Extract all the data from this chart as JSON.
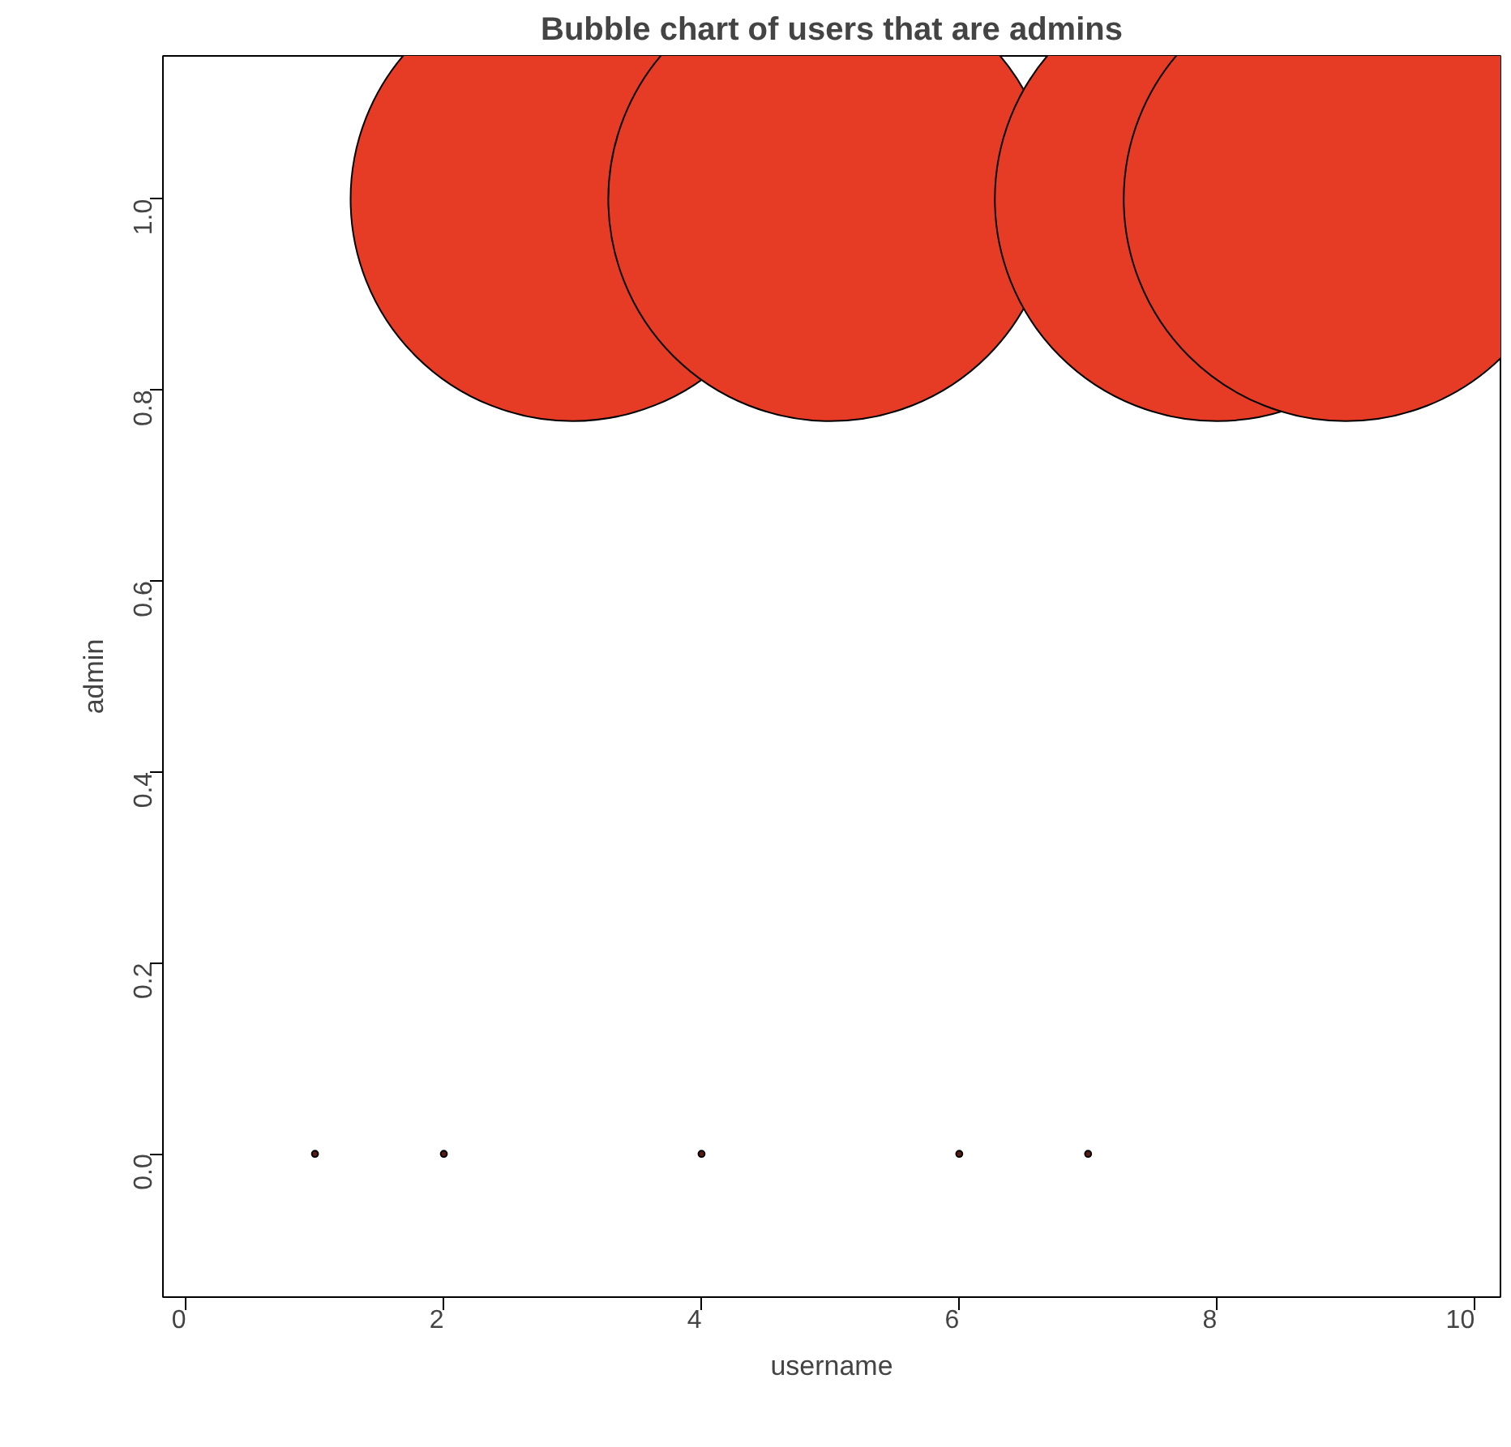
{
  "chart_data": {
    "type": "bubble",
    "title": "Bubble chart of users that are admins",
    "xlabel": "username",
    "ylabel": "admin",
    "x": [
      1,
      2,
      3,
      4,
      5,
      6,
      7,
      8,
      9
    ],
    "values": [
      0,
      0,
      1,
      0,
      1,
      0,
      0,
      1,
      1
    ],
    "sizes": [
      0.0002,
      0.0002,
      1,
      0.0002,
      1,
      0.0002,
      0.0002,
      1,
      1
    ],
    "colors": [
      "#5a1a14",
      "#5a1a14",
      "#e63b24",
      "#5a1a14",
      "#e63b24",
      "#5a1a14",
      "#5a1a14",
      "#e63b24",
      "#e63b24"
    ],
    "xlim": [
      -0.18,
      10.2
    ],
    "xticks": [
      0,
      2,
      4,
      6,
      8,
      10
    ],
    "ylim": [
      -0.15,
      1.15
    ],
    "yticks": [
      {
        "value": 0,
        "label": "0.0"
      },
      {
        "value": 0.2,
        "label": "0.2"
      },
      {
        "value": 0.4,
        "label": "0.4"
      },
      {
        "value": 0.6,
        "label": "0.6"
      },
      {
        "value": 0.8,
        "label": "0.8"
      },
      {
        "value": 1,
        "label": "1.0"
      }
    ],
    "grid": false
  }
}
